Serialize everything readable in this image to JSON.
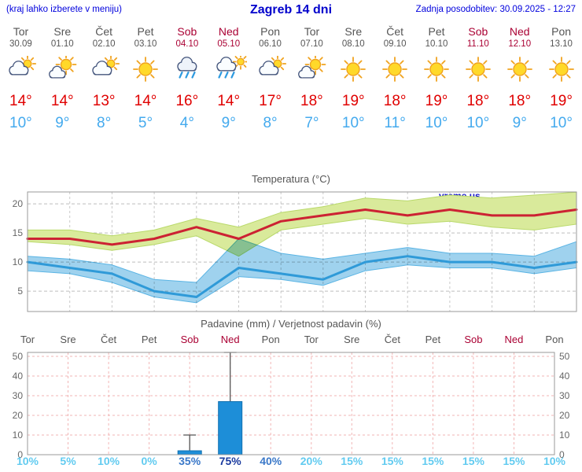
{
  "header": {
    "location_hint": "(kraj lahko izberete v meniju)",
    "title": "Zagreb 14 dni",
    "last_update": "Zadnja posodobitev: 30.09.2025 - 12:27"
  },
  "colors": {
    "header_blue": "#0000dd",
    "weekday_gray": "#555555",
    "weekend_red": "#aa0033",
    "high_red": "#e00000",
    "low_blue": "#44aaee",
    "temp_line_red": "#cc2233",
    "temp_band_green": "#d9ea9b",
    "temp_line_blue": "#2f9ad8",
    "temp_band_blue": "#9fd2ee",
    "bar_blue": "#1d8ed8",
    "grid_pink": "#f2b6b6",
    "grid_gray": "#c9c9c9",
    "pct_light": "#62cbf0",
    "pct_mid": "#3a78c8",
    "pct_dark": "#1a3a9e"
  },
  "forecast": {
    "days": [
      {
        "day": "Tor",
        "date": "30.09",
        "weekend": false,
        "icon": "mostly-cloudy",
        "high": "14°",
        "low": "10°",
        "prob": "10%",
        "prob_level": "light"
      },
      {
        "day": "Sre",
        "date": "01.10",
        "weekend": false,
        "icon": "partly-cloudy",
        "high": "14°",
        "low": "9°",
        "prob": "5%",
        "prob_level": "light"
      },
      {
        "day": "Čet",
        "date": "02.10",
        "weekend": false,
        "icon": "mostly-cloudy",
        "high": "13°",
        "low": "8°",
        "prob": "10%",
        "prob_level": "light"
      },
      {
        "day": "Pet",
        "date": "03.10",
        "weekend": false,
        "icon": "sunny",
        "high": "14°",
        "low": "5°",
        "prob": "0%",
        "prob_level": "light"
      },
      {
        "day": "Sob",
        "date": "04.10",
        "weekend": true,
        "icon": "rain",
        "high": "16°",
        "low": "4°",
        "prob": "35%",
        "prob_level": "mid"
      },
      {
        "day": "Ned",
        "date": "05.10",
        "weekend": true,
        "icon": "rain-sun",
        "high": "14°",
        "low": "9°",
        "prob": "75%",
        "prob_level": "dark"
      },
      {
        "day": "Pon",
        "date": "06.10",
        "weekend": false,
        "icon": "mostly-cloudy",
        "high": "17°",
        "low": "8°",
        "prob": "40%",
        "prob_level": "mid"
      },
      {
        "day": "Tor",
        "date": "07.10",
        "weekend": false,
        "icon": "partly-cloudy",
        "high": "18°",
        "low": "7°",
        "prob": "20%",
        "prob_level": "light"
      },
      {
        "day": "Sre",
        "date": "08.10",
        "weekend": false,
        "icon": "sunny",
        "high": "19°",
        "low": "10°",
        "prob": "15%",
        "prob_level": "light"
      },
      {
        "day": "Čet",
        "date": "09.10",
        "weekend": false,
        "icon": "sunny",
        "high": "18°",
        "low": "11°",
        "prob": "15%",
        "prob_level": "light"
      },
      {
        "day": "Pet",
        "date": "10.10",
        "weekend": false,
        "icon": "sunny",
        "high": "19°",
        "low": "10°",
        "prob": "15%",
        "prob_level": "light"
      },
      {
        "day": "Sob",
        "date": "11.10",
        "weekend": true,
        "icon": "sunny",
        "high": "18°",
        "low": "10°",
        "prob": "15%",
        "prob_level": "light"
      },
      {
        "day": "Ned",
        "date": "12.10",
        "weekend": true,
        "icon": "sunny",
        "high": "18°",
        "low": "9°",
        "prob": "15%",
        "prob_level": "light"
      },
      {
        "day": "Pon",
        "date": "13.10",
        "weekend": false,
        "icon": "sunny",
        "high": "19°",
        "low": "10°",
        "prob": "10%",
        "prob_level": "light"
      }
    ]
  },
  "chart_data": [
    {
      "type": "line",
      "title": "Temperatura (°C)",
      "watermark": "vreme.us",
      "x_labels": [
        "Tor",
        "Sre",
        "Čet",
        "Pet",
        "Sob",
        "Ned",
        "Pon",
        "Tor",
        "Sre",
        "Čet",
        "Pet",
        "Sob",
        "Ned",
        "Pon"
      ],
      "yticks": [
        5,
        10,
        15,
        20
      ],
      "ylim": [
        1.5,
        22
      ],
      "grid": true,
      "legend": "none",
      "series": [
        {
          "name": "max-temperature",
          "color": "#cc2233",
          "values": [
            14,
            14,
            13,
            14,
            16,
            14,
            17,
            18,
            19,
            18,
            19,
            18,
            18,
            19
          ]
        },
        {
          "name": "min-temperature",
          "color": "#2f9ad8",
          "values": [
            10,
            9,
            8,
            5,
            4,
            9,
            8,
            7,
            10,
            11,
            10,
            10,
            9,
            10
          ]
        }
      ],
      "bands": [
        {
          "name": "max-range",
          "color": "#d9ea9b",
          "upper": [
            15.5,
            15.5,
            14.5,
            15.5,
            17.5,
            16,
            18.5,
            19.5,
            21,
            20.5,
            21.5,
            21,
            21.5,
            22
          ],
          "lower": [
            13.5,
            13,
            12,
            13,
            14.5,
            11,
            15.5,
            16.5,
            17.5,
            16.5,
            17,
            16,
            15.5,
            16.5
          ]
        },
        {
          "name": "min-range",
          "color": "#9fd2ee",
          "upper": [
            11,
            10.5,
            9.5,
            7,
            6.5,
            14,
            11.5,
            10.5,
            11.5,
            12.5,
            11.5,
            11.5,
            11,
            13.5
          ],
          "lower": [
            8.5,
            8,
            6.5,
            4,
            3,
            7.5,
            7,
            6,
            8.5,
            9.5,
            9,
            9,
            8,
            9
          ]
        }
      ]
    },
    {
      "type": "bar",
      "title": "Padavine (mm) / Verjetnost padavin (%)",
      "x_labels": [
        "Tor",
        "Sre",
        "Čet",
        "Pet",
        "Sob",
        "Ned",
        "Pon",
        "Tor",
        "Sre",
        "Čet",
        "Pet",
        "Sob",
        "Ned",
        "Pon"
      ],
      "weekend_indices": [
        4,
        5,
        11,
        12
      ],
      "yticks": [
        0,
        10,
        20,
        30,
        40,
        50
      ],
      "ylim": [
        0,
        52
      ],
      "precip_mm": [
        0,
        0,
        0,
        0,
        2,
        27,
        0,
        0,
        0,
        0,
        0,
        0,
        0,
        0
      ],
      "precip_max_mm": [
        0,
        0,
        0,
        0,
        10,
        52,
        0,
        0,
        0,
        0,
        0,
        0,
        0,
        0
      ],
      "probabilities": [
        "10%",
        "5%",
        "10%",
        "0%",
        "35%",
        "75%",
        "40%",
        "20%",
        "15%",
        "15%",
        "15%",
        "15%",
        "15%",
        "10%"
      ]
    }
  ]
}
